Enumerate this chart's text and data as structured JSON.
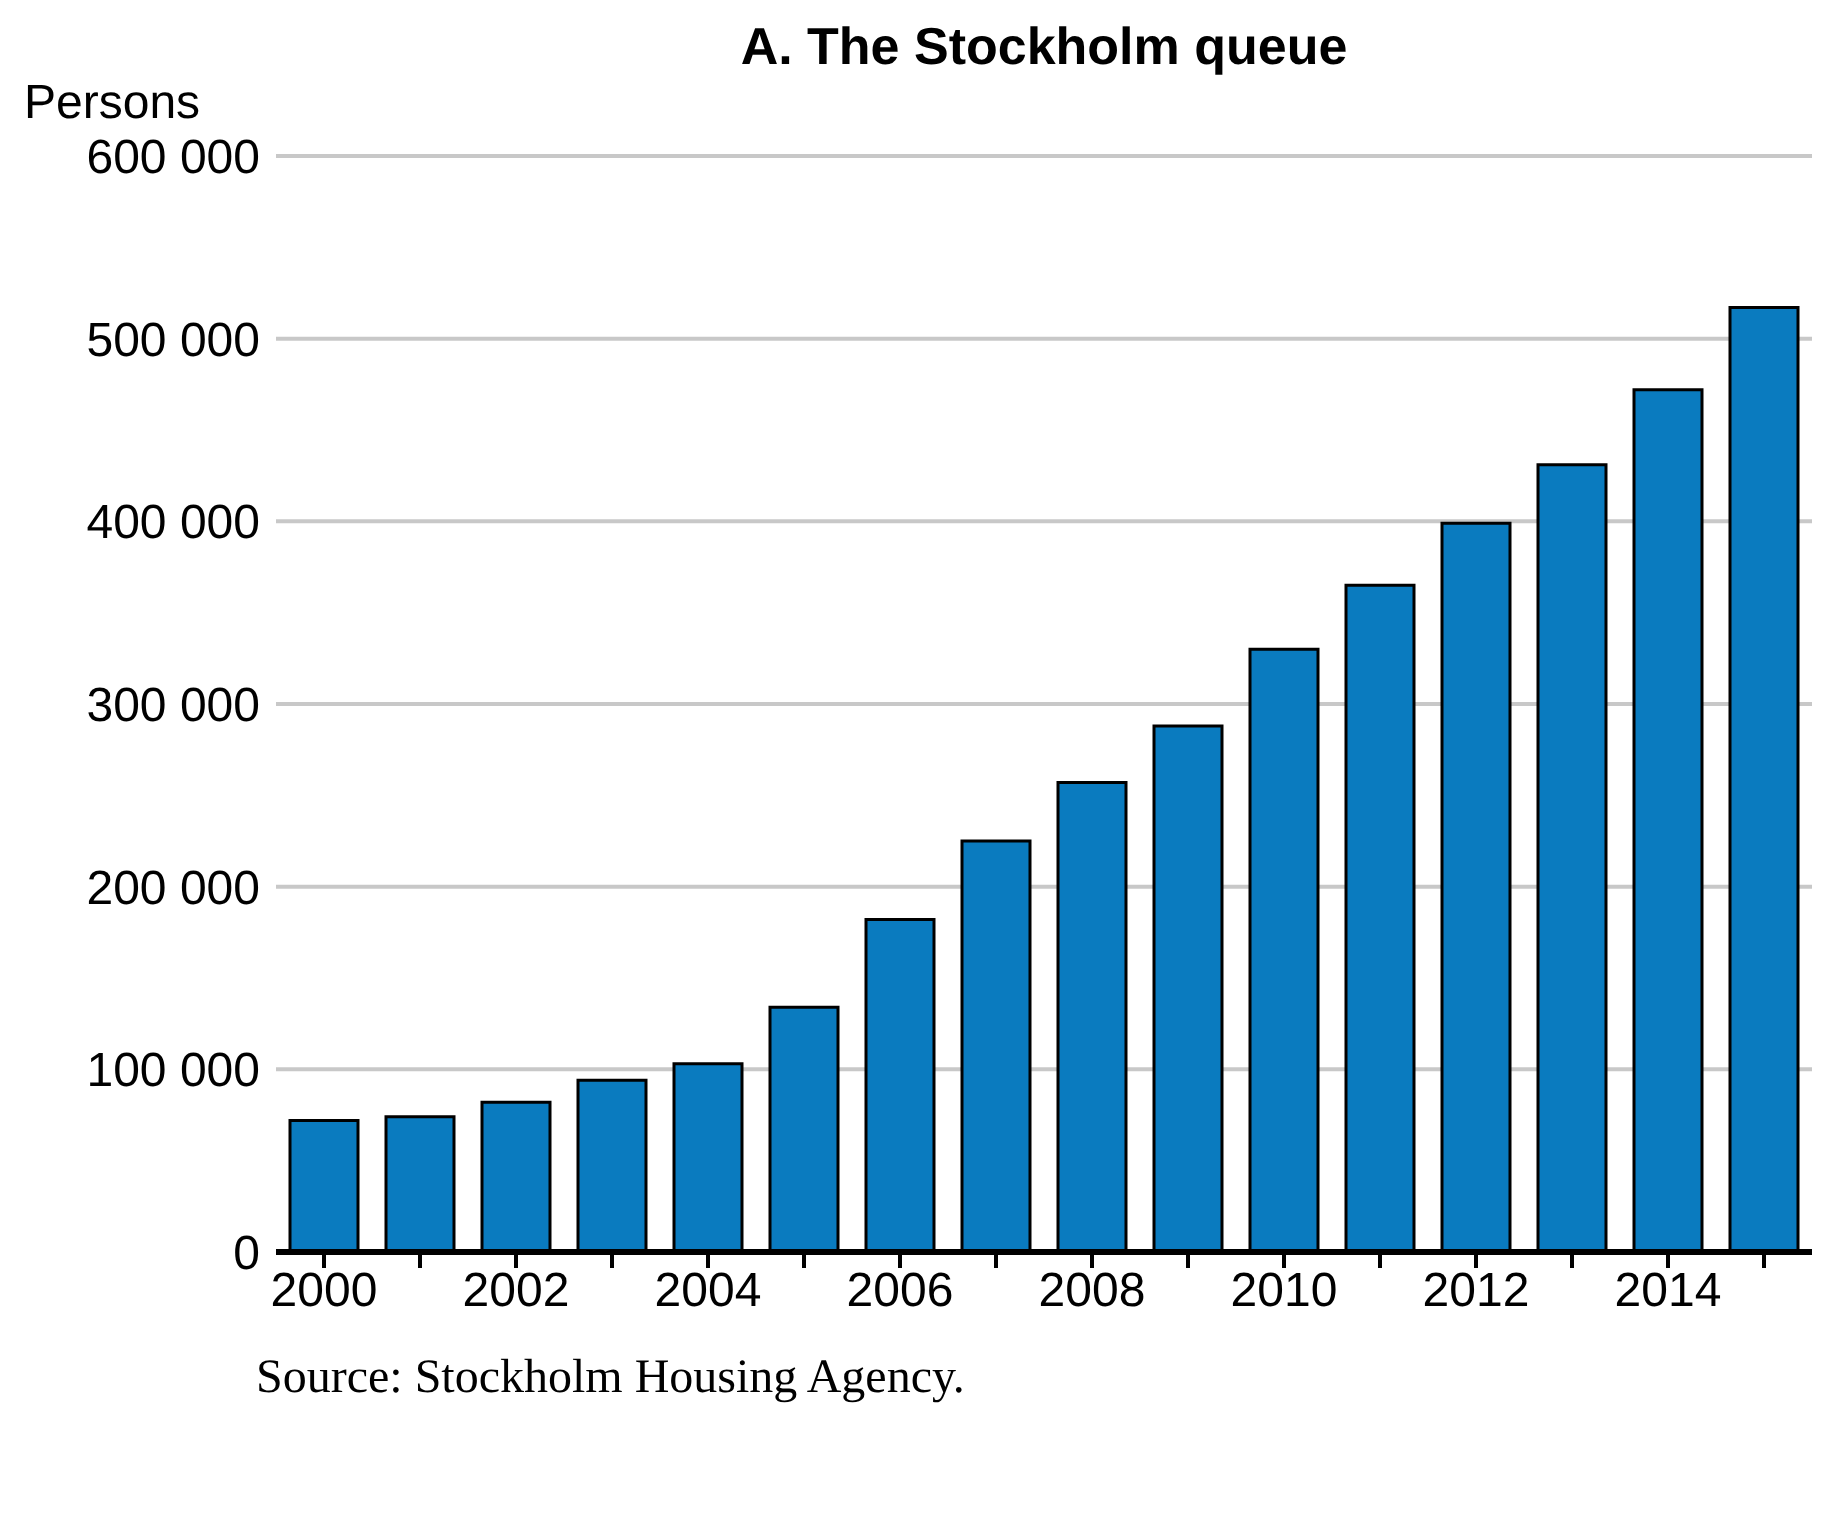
{
  "chart_data": {
    "type": "bar",
    "title": "A. The Stockholm queue",
    "ylabel": "Persons",
    "categories": [
      "2000",
      null,
      "2002",
      null,
      "2004",
      null,
      "2006",
      null,
      "2008",
      null,
      "2010",
      null,
      "2012",
      null,
      "2014",
      null
    ],
    "values": [
      72000,
      74000,
      82000,
      94000,
      103000,
      134000,
      182000,
      225000,
      257000,
      288000,
      330000,
      365000,
      399000,
      431000,
      472000,
      517000
    ],
    "color": "#0a7bbf",
    "ylim": [
      0,
      600000
    ],
    "yticks": [
      {
        "value": 0,
        "label": "0"
      },
      {
        "value": 100000,
        "label": "100 000"
      },
      {
        "value": 200000,
        "label": "200 000"
      },
      {
        "value": 300000,
        "label": "300 000"
      },
      {
        "value": 400000,
        "label": "400 000"
      },
      {
        "value": 500000,
        "label": "500 000"
      },
      {
        "value": 600000,
        "label": "600 000"
      }
    ],
    "grid": "y",
    "annotations": [
      "Source: Stockholm Housing Agency."
    ]
  }
}
